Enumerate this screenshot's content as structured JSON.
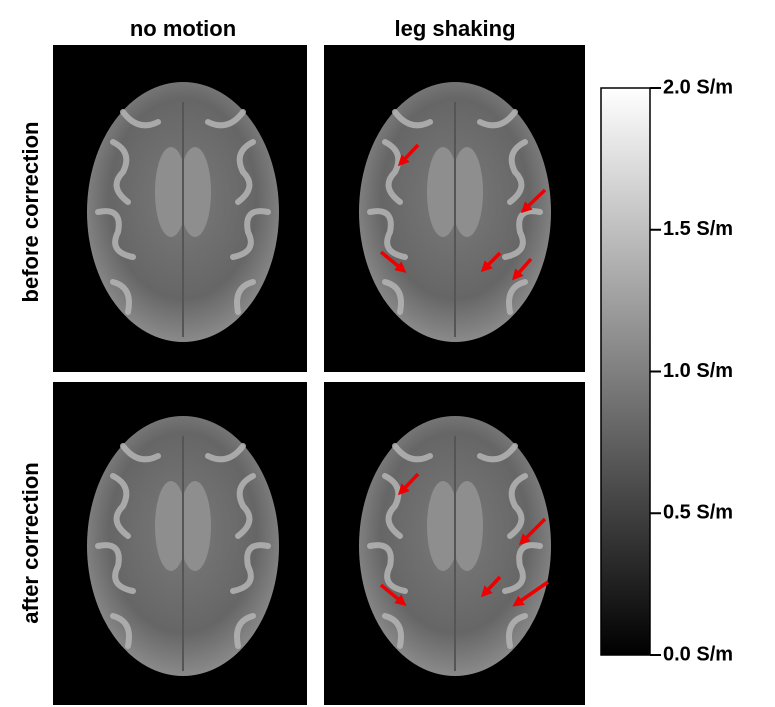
{
  "columns": [
    "no motion",
    "leg shaking"
  ],
  "rows": [
    "before correction",
    "after correction"
  ],
  "colorbar": {
    "lim": [
      0,
      2
    ],
    "ticks": [
      {
        "value": 0,
        "label": "0.0 S/m"
      },
      {
        "value": 0.5,
        "label": "0.5 S/m"
      },
      {
        "value": 1,
        "label": "1.0 S/m"
      },
      {
        "value": 1.5,
        "label": "1.5 S/m"
      },
      {
        "value": 2,
        "label": "2.0 S/m"
      }
    ]
  }
}
